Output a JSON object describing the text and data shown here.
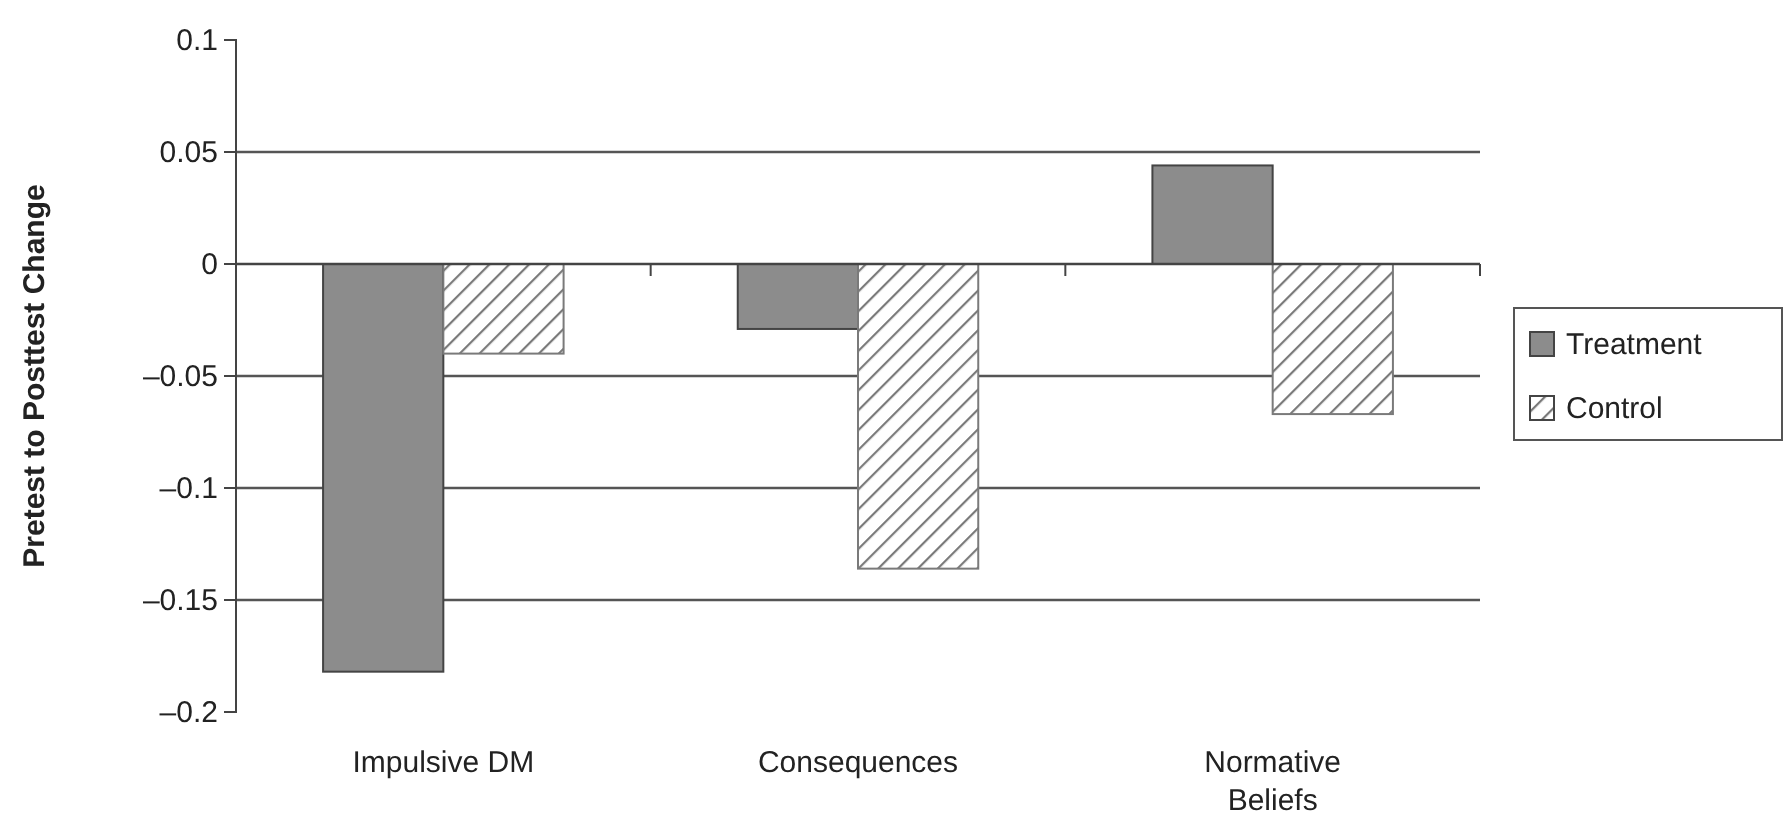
{
  "chart_data": {
    "type": "bar",
    "ylabel": "Pretest to Posttest Change",
    "categories": [
      "Impulsive DM",
      "Consequences",
      "Normative Beliefs"
    ],
    "series": [
      {
        "name": "Treatment",
        "color": "#8c8c8c",
        "values": [
          -0.182,
          -0.029,
          0.044
        ]
      },
      {
        "name": "Control",
        "color": "#7a7a7a",
        "values": [
          -0.04,
          -0.136,
          -0.067
        ]
      }
    ],
    "ylim": [
      -0.2,
      0.1
    ],
    "yticks": [
      {
        "value": 0.1,
        "label": "0.1"
      },
      {
        "value": 0.05,
        "label": "0.05"
      },
      {
        "value": 0,
        "label": "0"
      },
      {
        "value": -0.05,
        "label": "–0.05"
      },
      {
        "value": -0.1,
        "label": "–0.1"
      },
      {
        "value": -0.15,
        "label": "–0.15"
      },
      {
        "value": -0.2,
        "label": "–0.2"
      }
    ],
    "grid": "y",
    "legend": "right"
  }
}
